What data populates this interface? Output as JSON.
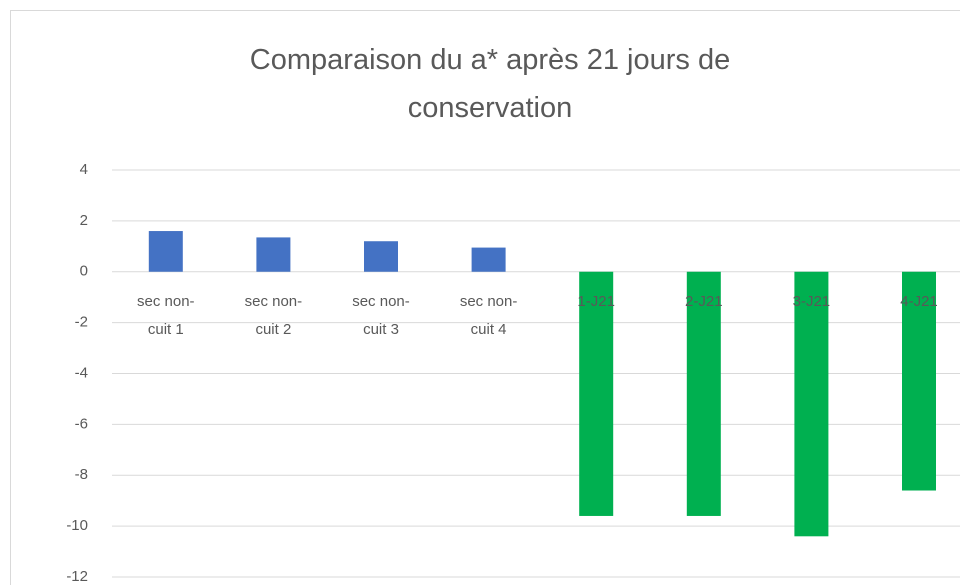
{
  "chart_data": {
    "type": "bar",
    "title": "Comparaison du a* après 21 jours de conservation",
    "categories": [
      "sec non-cuit 1",
      "sec non-cuit 2",
      "sec non-cuit 3",
      "sec non-cuit 4",
      "1-J21",
      "2-J21",
      "3-J21",
      "4-J21"
    ],
    "values": [
      1.6,
      1.35,
      1.2,
      0.95,
      -9.6,
      -9.6,
      -10.4,
      -8.6
    ],
    "colors": [
      "#4472c4",
      "#4472c4",
      "#4472c4",
      "#4472c4",
      "#00b050",
      "#00b050",
      "#00b050",
      "#00b050"
    ],
    "ylim": [
      -12,
      4
    ],
    "yticks": [
      -12,
      -10,
      -8,
      -6,
      -4,
      -2,
      0,
      2,
      4
    ],
    "grid": true
  }
}
